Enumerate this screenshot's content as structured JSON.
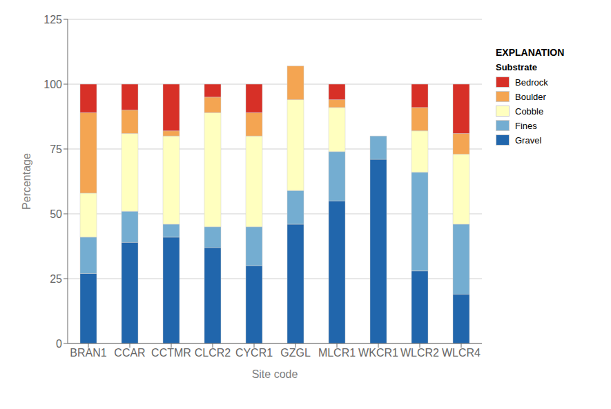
{
  "chart_data": {
    "type": "bar",
    "stacked": true,
    "xlabel": "Site code",
    "ylabel": "Percentage",
    "categories": [
      "BRAN1",
      "CCAR",
      "CCTMR",
      "CLCR2",
      "CYCR1",
      "GZGL",
      "MLCR1",
      "WKCR1",
      "WLCR2",
      "WLCR4"
    ],
    "series": [
      {
        "name": "Gravel",
        "color": "#2166ac",
        "values": [
          27,
          39,
          41,
          37,
          30,
          46,
          55,
          71,
          28,
          19
        ]
      },
      {
        "name": "Fines",
        "color": "#74add1",
        "values": [
          14,
          12,
          5,
          8,
          15,
          13,
          19,
          9,
          38,
          27
        ]
      },
      {
        "name": "Cobble",
        "color": "#ffffbf",
        "values": [
          17,
          30,
          34,
          44,
          35,
          35,
          17,
          0,
          16,
          27
        ]
      },
      {
        "name": "Boulder",
        "color": "#f4a552",
        "values": [
          31,
          9,
          2,
          6,
          9,
          13,
          3,
          0,
          9,
          8
        ]
      },
      {
        "name": "Bedrock",
        "color": "#d73027",
        "values": [
          11,
          10,
          18,
          5,
          11,
          0,
          6,
          0,
          9,
          19
        ]
      }
    ],
    "ylim": [
      0,
      125
    ],
    "yticks": [
      0,
      25,
      50,
      75,
      100,
      125
    ],
    "grid": true,
    "legend": "right",
    "legend_title": "Substrate",
    "annotations": [
      "EXPLANATION"
    ]
  }
}
